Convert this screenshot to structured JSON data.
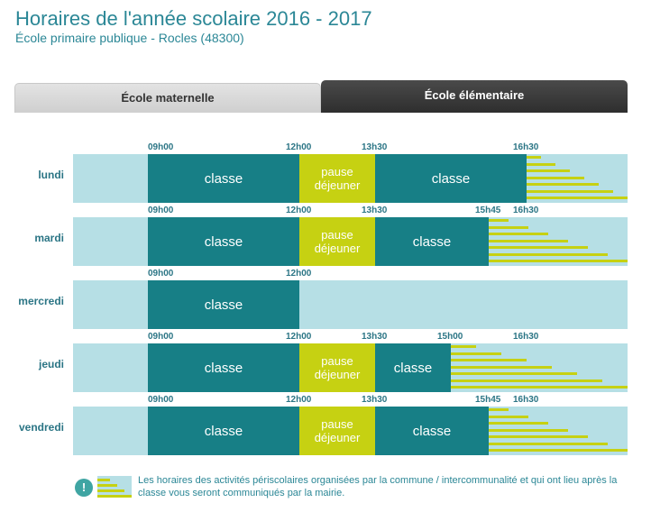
{
  "header": {
    "title": "Horaires de l'année scolaire 2016 - 2017",
    "subtitle": "École primaire publique - Rocles (48300)"
  },
  "tabs": [
    {
      "label": "École maternelle",
      "active": false
    },
    {
      "label": "École élémentaire",
      "active": true
    }
  ],
  "segment_labels": {
    "classe": "classe",
    "pause": "pause\ndéjeuner"
  },
  "days": [
    {
      "name": "lundi",
      "times": [
        "09h00",
        "12h00",
        "13h30",
        "16h30"
      ],
      "segments": [
        {
          "type": "classe",
          "start": "09h00",
          "end": "12h00"
        },
        {
          "type": "pause",
          "start": "12h00",
          "end": "13h30"
        },
        {
          "type": "classe",
          "start": "13h30",
          "end": "16h30"
        }
      ],
      "periscolaire_from": "16h30"
    },
    {
      "name": "mardi",
      "times": [
        "09h00",
        "12h00",
        "13h30",
        "15h45",
        "16h30"
      ],
      "segments": [
        {
          "type": "classe",
          "start": "09h00",
          "end": "12h00"
        },
        {
          "type": "pause",
          "start": "12h00",
          "end": "13h30"
        },
        {
          "type": "classe",
          "start": "13h30",
          "end": "15h45"
        }
      ],
      "periscolaire_from": "15h45"
    },
    {
      "name": "mercredi",
      "times": [
        "09h00",
        "12h00"
      ],
      "segments": [
        {
          "type": "classe",
          "start": "09h00",
          "end": "12h00"
        }
      ],
      "periscolaire_from": null
    },
    {
      "name": "jeudi",
      "times": [
        "09h00",
        "12h00",
        "13h30",
        "15h00",
        "16h30"
      ],
      "segments": [
        {
          "type": "classe",
          "start": "09h00",
          "end": "12h00"
        },
        {
          "type": "pause",
          "start": "12h00",
          "end": "13h30"
        },
        {
          "type": "classe",
          "start": "13h30",
          "end": "15h00"
        }
      ],
      "periscolaire_from": "15h00"
    },
    {
      "name": "vendredi",
      "times": [
        "09h00",
        "12h00",
        "13h30",
        "15h45",
        "16h30"
      ],
      "segments": [
        {
          "type": "classe",
          "start": "09h00",
          "end": "12h00"
        },
        {
          "type": "pause",
          "start": "12h00",
          "end": "13h30"
        },
        {
          "type": "classe",
          "start": "13h30",
          "end": "15h45"
        }
      ],
      "periscolaire_from": "15h45"
    }
  ],
  "note": {
    "icon": "exclamation-icon",
    "text": "Les horaires des activités périscolaires organisées par la commune / intercommunalité et qui ont lieu après la classe vous seront communiqués par la mairie."
  },
  "colors": {
    "classe": "#177f86",
    "pause": "#c6d112",
    "track": "#b6dfe5",
    "labels": "#2b7585"
  }
}
